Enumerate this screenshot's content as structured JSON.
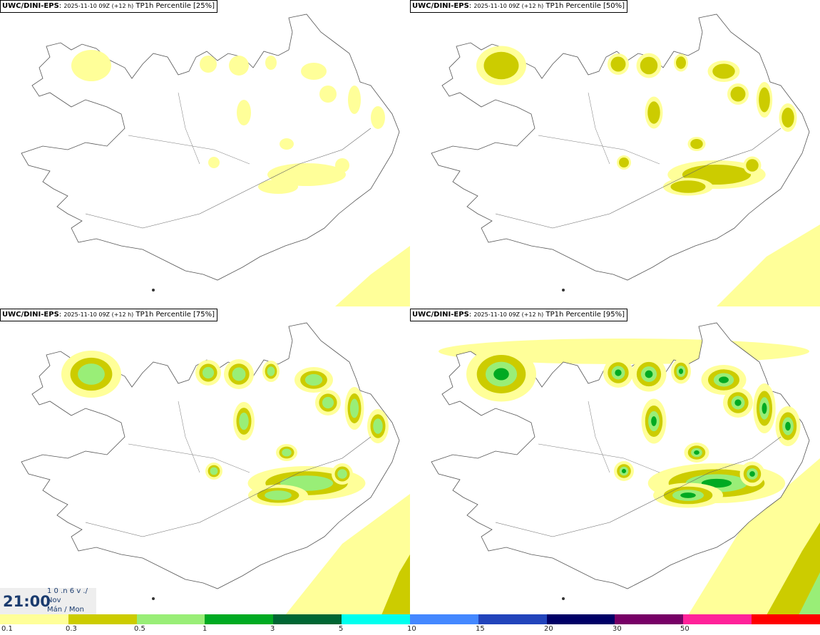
{
  "panels": [
    {
      "model": "UWC/DINI-EPS",
      "meta": "2025-11-10 09Z (+12 h)",
      "field": "TP1h Percentile [25%]",
      "level": 1
    },
    {
      "model": "UWC/DINI-EPS",
      "meta": "2025-11-10 09Z (+12 h)",
      "field": "TP1h Percentile [50%]",
      "level": 2
    },
    {
      "model": "UWC/DINI-EPS",
      "meta": "2025-11-10 09Z (+12 h)",
      "field": "TP1h Percentile [75%]",
      "level": 3
    },
    {
      "model": "UWC/DINI-EPS",
      "meta": "2025-11-10 09Z (+12 h)",
      "field": "TP1h Percentile [95%]",
      "level": 4
    }
  ],
  "clock": {
    "time": "21:00",
    "line1": "1 0 .n 6 v ./",
    "line2": "Nov",
    "line3": "Mán / Mon"
  },
  "legend": {
    "colors": [
      "#ffff99",
      "#cccc00",
      "#99ee77",
      "#00aa22",
      "#006633",
      "#00ffee",
      "#4488ff",
      "#2244bb",
      "#000066",
      "#770066",
      "#ff2299",
      "#ff0000"
    ],
    "ticks": [
      "0.1",
      "0.3",
      "0.5",
      "1",
      "3",
      "5",
      "10",
      "15",
      "20",
      "30",
      "50"
    ]
  }
}
